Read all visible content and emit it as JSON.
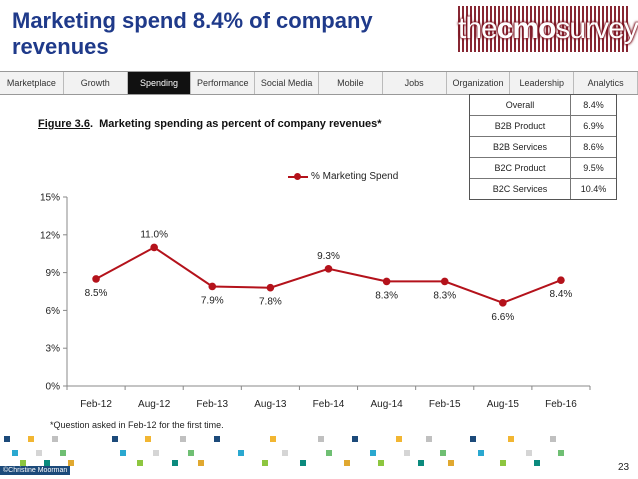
{
  "header": {
    "title": "Marketing spend 8.4% of company revenues"
  },
  "logo": {
    "pre": "the",
    "bold": "cmo",
    "post": "survey"
  },
  "nav": {
    "tabs": [
      "Marketplace",
      "Growth",
      "Spending",
      "Performance",
      "Social Media",
      "Mobile",
      "Jobs",
      "Organization",
      "Leadership",
      "Analytics"
    ],
    "active": "Spending"
  },
  "figure": {
    "number": "Figure 3.6",
    "caption": "Marketing spending as percent of company revenues*"
  },
  "summary": [
    {
      "label": "Overall",
      "value": "8.4%"
    },
    {
      "label": "B2B Product",
      "value": "6.9%"
    },
    {
      "label": "B2B Services",
      "value": "8.6%"
    },
    {
      "label": "B2C Product",
      "value": "9.5%"
    },
    {
      "label": "B2C Services",
      "value": "10.4%"
    }
  ],
  "chart_data": {
    "type": "line",
    "title": "",
    "categories": [
      "Feb-12",
      "Aug-12",
      "Feb-13",
      "Aug-13",
      "Feb-14",
      "Aug-14",
      "Feb-15",
      "Aug-15",
      "Feb-16"
    ],
    "series": [
      {
        "name": "% Marketing Spend",
        "color": "#b4121b",
        "values": [
          8.5,
          11.0,
          7.9,
          7.8,
          9.3,
          8.3,
          8.3,
          6.6,
          8.4
        ],
        "labels": [
          "8.5%",
          "11.0%",
          "7.9%",
          "7.8%",
          "9.3%",
          "8.3%",
          "8.3%",
          "6.6%",
          "8.4%"
        ]
      }
    ],
    "yticks": [
      "0%",
      "3%",
      "6%",
      "9%",
      "12%",
      "15%"
    ],
    "ylim": [
      0,
      15
    ],
    "legend": "top-center",
    "grid": false
  },
  "footnote": "*Question asked in Feb-12 for the first time.",
  "page_number": "23",
  "credit": "©Christine Moorman"
}
